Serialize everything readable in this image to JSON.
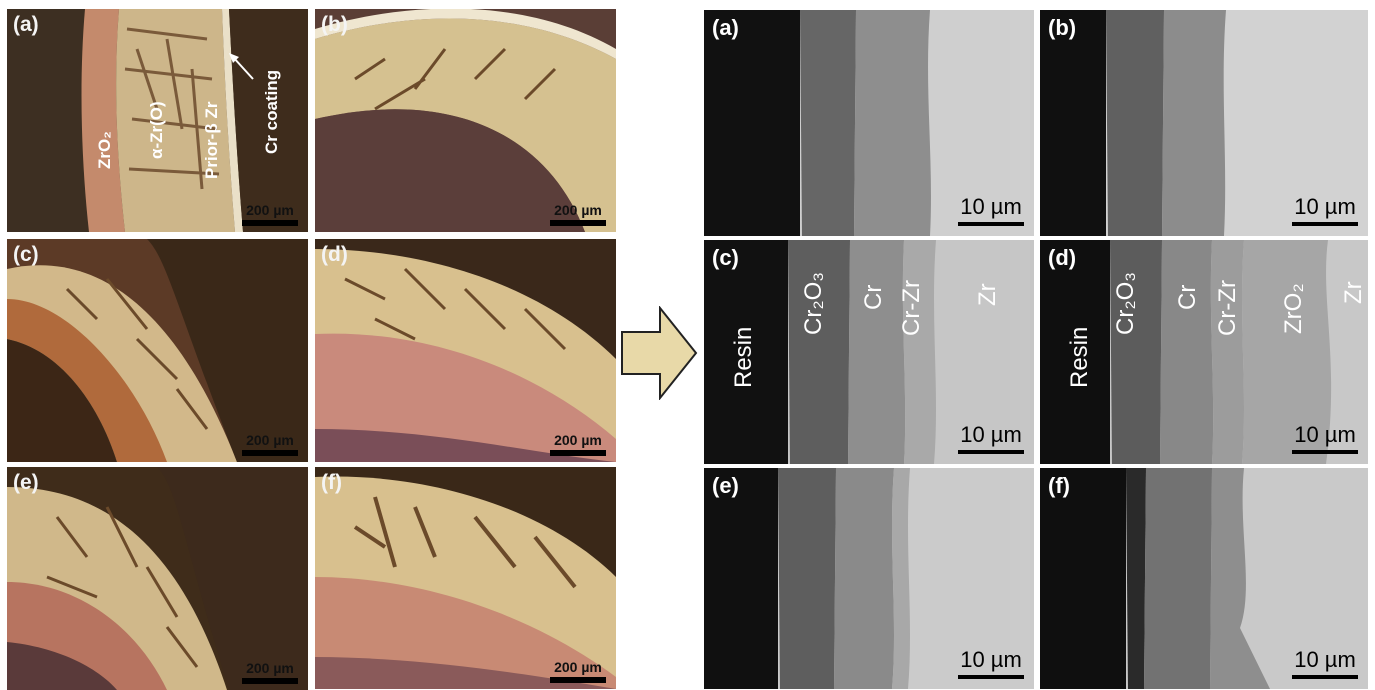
{
  "om_panels": [
    {
      "label": "(a)",
      "scale": "200 µm"
    },
    {
      "label": "(b)",
      "scale": "200 µm"
    },
    {
      "label": "(c)",
      "scale": "200 µm"
    },
    {
      "label": "(d)",
      "scale": "200 µm"
    },
    {
      "label": "(e)",
      "scale": "200 µm"
    },
    {
      "label": "(f)",
      "scale": "200 µm"
    }
  ],
  "om_annotations": {
    "zro2": "ZrO₂",
    "alpha_zr": "α-Zr(O)",
    "prior_beta": "Prior-β Zr",
    "cr_coating": "Cr coating"
  },
  "sem_panels": [
    {
      "label": "(a)",
      "scale": "10 µm"
    },
    {
      "label": "(b)",
      "scale": "10 µm"
    },
    {
      "label": "(c)",
      "scale": "10 µm"
    },
    {
      "label": "(d)",
      "scale": "10 µm"
    },
    {
      "label": "(e)",
      "scale": "10 µm"
    },
    {
      "label": "(f)",
      "scale": "10 µm"
    }
  ],
  "sem_layers_c": {
    "resin": "Resin",
    "cr2o3": "Cr₂O₃",
    "cr": "Cr",
    "crzr": "Cr-Zr",
    "zr": "Zr"
  },
  "sem_layers_d": {
    "resin": "Resin",
    "cr2o3": "Cr₂O₃",
    "cr": "Cr",
    "crzr": "Cr-Zr",
    "zro2": "ZrO₂",
    "zr": "Zr"
  },
  "colors": {
    "om_background": "#3b2a18",
    "om_zr_layer": "#c98a6a",
    "om_oxide": "#d9c27c",
    "sem_resin": "#111111",
    "sem_cr2o3": "#5f5f5f",
    "sem_cr": "#8a8a8a",
    "sem_zr": "#c9c9c9",
    "arrow_fill": "#e8d9a8"
  },
  "icons": {
    "arrow": "right-arrow-icon"
  }
}
